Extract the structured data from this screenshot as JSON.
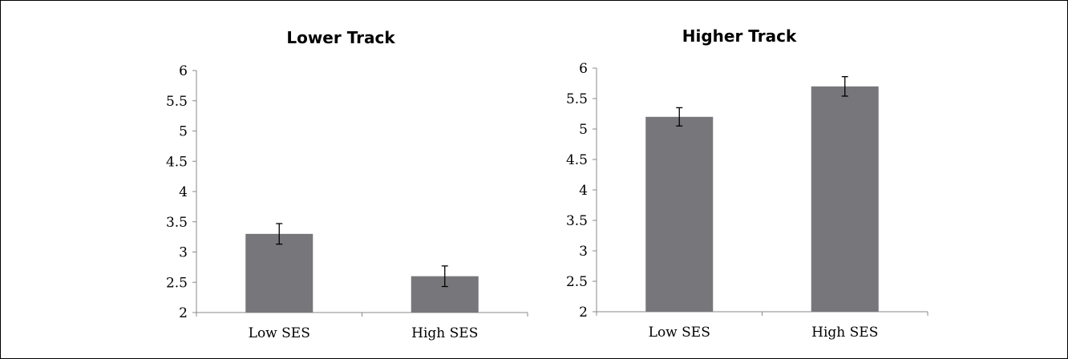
{
  "chart_data": [
    {
      "type": "bar",
      "title": "Lower Track",
      "xlabel": "",
      "ylabel": "",
      "categories": [
        "Low SES",
        "High SES"
      ],
      "values": [
        3.3,
        2.6
      ],
      "error": [
        0.17,
        0.17
      ],
      "ylim": [
        2,
        6
      ],
      "yticks": [
        "2",
        "2.5",
        "3",
        "3.5",
        "4",
        "4.5",
        "5",
        "5.5",
        "6"
      ],
      "bar_color": "#77777b",
      "grid": false,
      "legend": "none"
    },
    {
      "type": "bar",
      "title": "Higher Track",
      "xlabel": "",
      "ylabel": "",
      "categories": [
        "Low SES",
        "High SES"
      ],
      "values": [
        5.2,
        5.7
      ],
      "error": [
        0.15,
        0.16
      ],
      "ylim": [
        2,
        6
      ],
      "yticks": [
        "2",
        "2.5",
        "3",
        "3.5",
        "4",
        "4.5",
        "5",
        "5.5",
        "6"
      ],
      "bar_color": "#77777b",
      "grid": false,
      "legend": "none"
    }
  ]
}
